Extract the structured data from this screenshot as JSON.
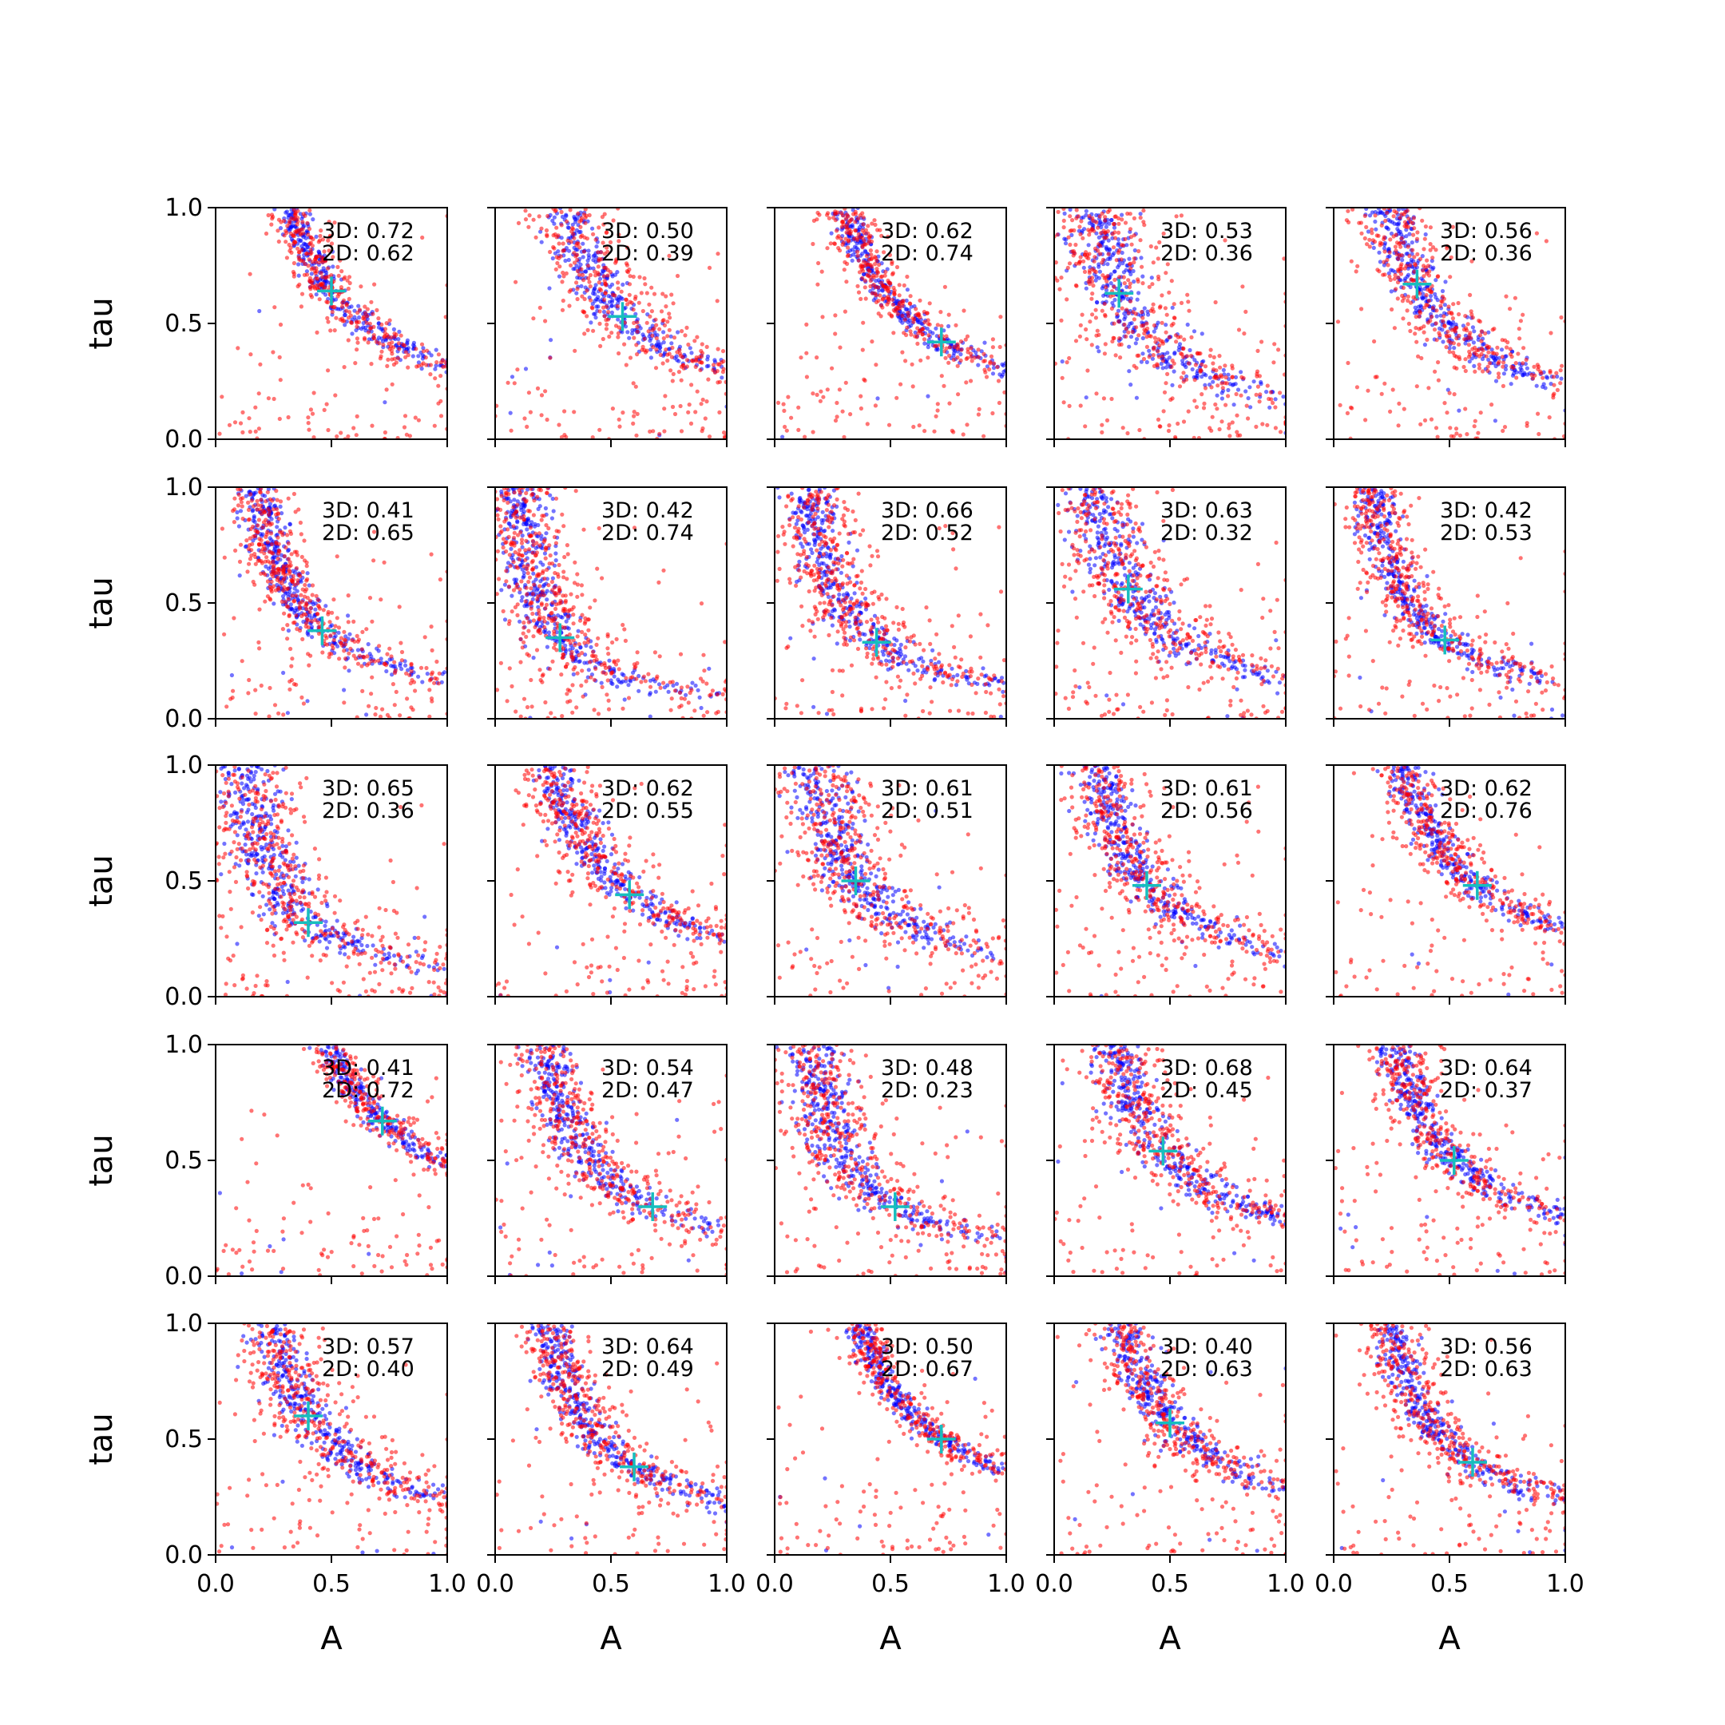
{
  "chart_data": {
    "type": "scatter",
    "grid": {
      "rows": 5,
      "cols": 5
    },
    "xlabel": "A",
    "ylabel": "tau",
    "xlim": [
      0,
      1
    ],
    "ylim": [
      0,
      1
    ],
    "xticks": [
      "0.0",
      "0.5",
      "1.0"
    ],
    "yticks": [
      "0.0",
      "0.5",
      "1.0"
    ],
    "grid_lines": false,
    "colors": {
      "series_3d": "#0000ff",
      "series_2d": "#ff0000",
      "marker": "#17bebe"
    },
    "annotation_prefixes": [
      "3D: ",
      "2D: "
    ],
    "panels": [
      {
        "s3": "0.72",
        "s2": "0.62",
        "cross": [
          0.5,
          0.64
        ],
        "spread": 0.7
      },
      {
        "s3": "0.50",
        "s2": "0.39",
        "cross": [
          0.55,
          0.53
        ],
        "spread": 1.2
      },
      {
        "s3": "0.62",
        "s2": "0.74",
        "cross": [
          0.72,
          0.42
        ],
        "spread": 0.7
      },
      {
        "s3": "0.53",
        "s2": "0.36",
        "cross": [
          0.28,
          0.63
        ],
        "spread": 1.6
      },
      {
        "s3": "0.56",
        "s2": "0.36",
        "cross": [
          0.36,
          0.67
        ],
        "spread": 1.2
      },
      {
        "s3": "0.41",
        "s2": "0.65",
        "cross": [
          0.46,
          0.38
        ],
        "spread": 0.9
      },
      {
        "s3": "0.42",
        "s2": "0.74",
        "cross": [
          0.28,
          0.35
        ],
        "spread": 1.3
      },
      {
        "s3": "0.66",
        "s2": "0.52",
        "cross": [
          0.44,
          0.33
        ],
        "spread": 1.2
      },
      {
        "s3": "0.63",
        "s2": "0.32",
        "cross": [
          0.32,
          0.56
        ],
        "spread": 1.4
      },
      {
        "s3": "0.42",
        "s2": "0.53",
        "cross": [
          0.48,
          0.34
        ],
        "spread": 0.9
      },
      {
        "s3": "0.65",
        "s2": "0.36",
        "cross": [
          0.4,
          0.32
        ],
        "spread": 1.5
      },
      {
        "s3": "0.62",
        "s2": "0.55",
        "cross": [
          0.58,
          0.44
        ],
        "spread": 1.1
      },
      {
        "s3": "0.61",
        "s2": "0.51",
        "cross": [
          0.35,
          0.5
        ],
        "spread": 1.4
      },
      {
        "s3": "0.61",
        "s2": "0.56",
        "cross": [
          0.4,
          0.48
        ],
        "spread": 1.1
      },
      {
        "s3": "0.62",
        "s2": "0.76",
        "cross": [
          0.62,
          0.48
        ],
        "spread": 0.9
      },
      {
        "s3": "0.41",
        "s2": "0.72",
        "cross": [
          0.72,
          0.67
        ],
        "spread": 0.6
      },
      {
        "s3": "0.54",
        "s2": "0.47",
        "cross": [
          0.68,
          0.3
        ],
        "spread": 1.1
      },
      {
        "s3": "0.48",
        "s2": "0.23",
        "cross": [
          0.52,
          0.3
        ],
        "spread": 1.3
      },
      {
        "s3": "0.68",
        "s2": "0.45",
        "cross": [
          0.47,
          0.54
        ],
        "spread": 1.2
      },
      {
        "s3": "0.64",
        "s2": "0.37",
        "cross": [
          0.52,
          0.5
        ],
        "spread": 1.0
      },
      {
        "s3": "0.57",
        "s2": "0.40",
        "cross": [
          0.4,
          0.6
        ],
        "spread": 1.1
      },
      {
        "s3": "0.64",
        "s2": "0.49",
        "cross": [
          0.6,
          0.38
        ],
        "spread": 1.0
      },
      {
        "s3": "0.50",
        "s2": "0.67",
        "cross": [
          0.72,
          0.5
        ],
        "spread": 0.6
      },
      {
        "s3": "0.40",
        "s2": "0.63",
        "cross": [
          0.5,
          0.57
        ],
        "spread": 1.0
      },
      {
        "s3": "0.56",
        "s2": "0.63",
        "cross": [
          0.6,
          0.4
        ],
        "spread": 0.9
      }
    ]
  }
}
